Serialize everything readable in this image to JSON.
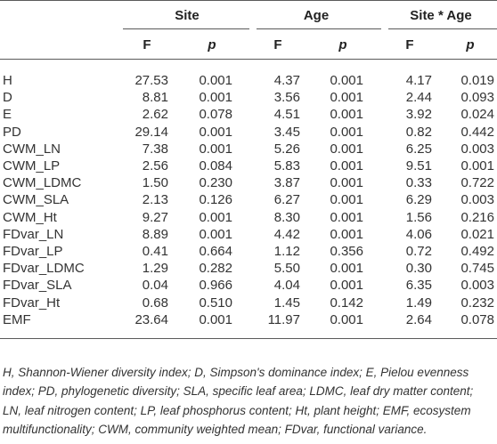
{
  "table": {
    "group_headers": [
      "Site",
      "Age",
      "Site * Age"
    ],
    "sub_headers": [
      "F",
      "p",
      "F",
      "p",
      "F",
      "p"
    ],
    "rows": [
      {
        "label": "H",
        "values": [
          "27.53",
          "0.001",
          "4.37",
          "0.001",
          "4.17",
          "0.019"
        ]
      },
      {
        "label": "D",
        "values": [
          "8.81",
          "0.001",
          "3.56",
          "0.001",
          "2.44",
          "0.093"
        ]
      },
      {
        "label": "E",
        "values": [
          "2.62",
          "0.078",
          "4.51",
          "0.001",
          "3.92",
          "0.024"
        ]
      },
      {
        "label": "PD",
        "values": [
          "29.14",
          "0.001",
          "3.45",
          "0.001",
          "0.82",
          "0.442"
        ]
      },
      {
        "label": "CWM_LN",
        "values": [
          "7.38",
          "0.001",
          "5.26",
          "0.001",
          "6.25",
          "0.003"
        ]
      },
      {
        "label": "CWM_LP",
        "values": [
          "2.56",
          "0.084",
          "5.83",
          "0.001",
          "9.51",
          "0.001"
        ]
      },
      {
        "label": "CWM_LDMC",
        "values": [
          "1.50",
          "0.230",
          "3.87",
          "0.001",
          "0.33",
          "0.722"
        ]
      },
      {
        "label": "CWM_SLA",
        "values": [
          "2.13",
          "0.126",
          "6.27",
          "0.001",
          "6.29",
          "0.003"
        ]
      },
      {
        "label": "CWM_Ht",
        "values": [
          "9.27",
          "0.001",
          "8.30",
          "0.001",
          "1.56",
          "0.216"
        ]
      },
      {
        "label": "FDvar_LN",
        "values": [
          "8.89",
          "0.001",
          "4.42",
          "0.001",
          "4.06",
          "0.021"
        ]
      },
      {
        "label": "FDvar_LP",
        "values": [
          "0.41",
          "0.664",
          "1.12",
          "0.356",
          "0.72",
          "0.492"
        ]
      },
      {
        "label": "FDvar_LDMC",
        "values": [
          "1.29",
          "0.282",
          "5.50",
          "0.001",
          "0.30",
          "0.745"
        ]
      },
      {
        "label": "FDvar_SLA",
        "values": [
          "0.04",
          "0.966",
          "4.04",
          "0.001",
          "6.35",
          "0.003"
        ]
      },
      {
        "label": "FDvar_Ht",
        "values": [
          "0.68",
          "0.510",
          "1.45",
          "0.142",
          "1.49",
          "0.232"
        ]
      },
      {
        "label": "EMF",
        "values": [
          "23.64",
          "0.001",
          "11.97",
          "0.001",
          "2.64",
          "0.078"
        ]
      }
    ]
  },
  "footnote": "H, Shannon-Wiener diversity index; D, Simpson's dominance index; E, Pielou evenness index; PD, phylogenetic diversity; SLA, specific leaf area; LDMC, leaf dry matter content; LN, leaf nitrogen content; LP, leaf phosphorus content; Ht, plant height; EMF, ecosystem multifunctionality; CWM, community weighted mean; FDvar, functional variance."
}
